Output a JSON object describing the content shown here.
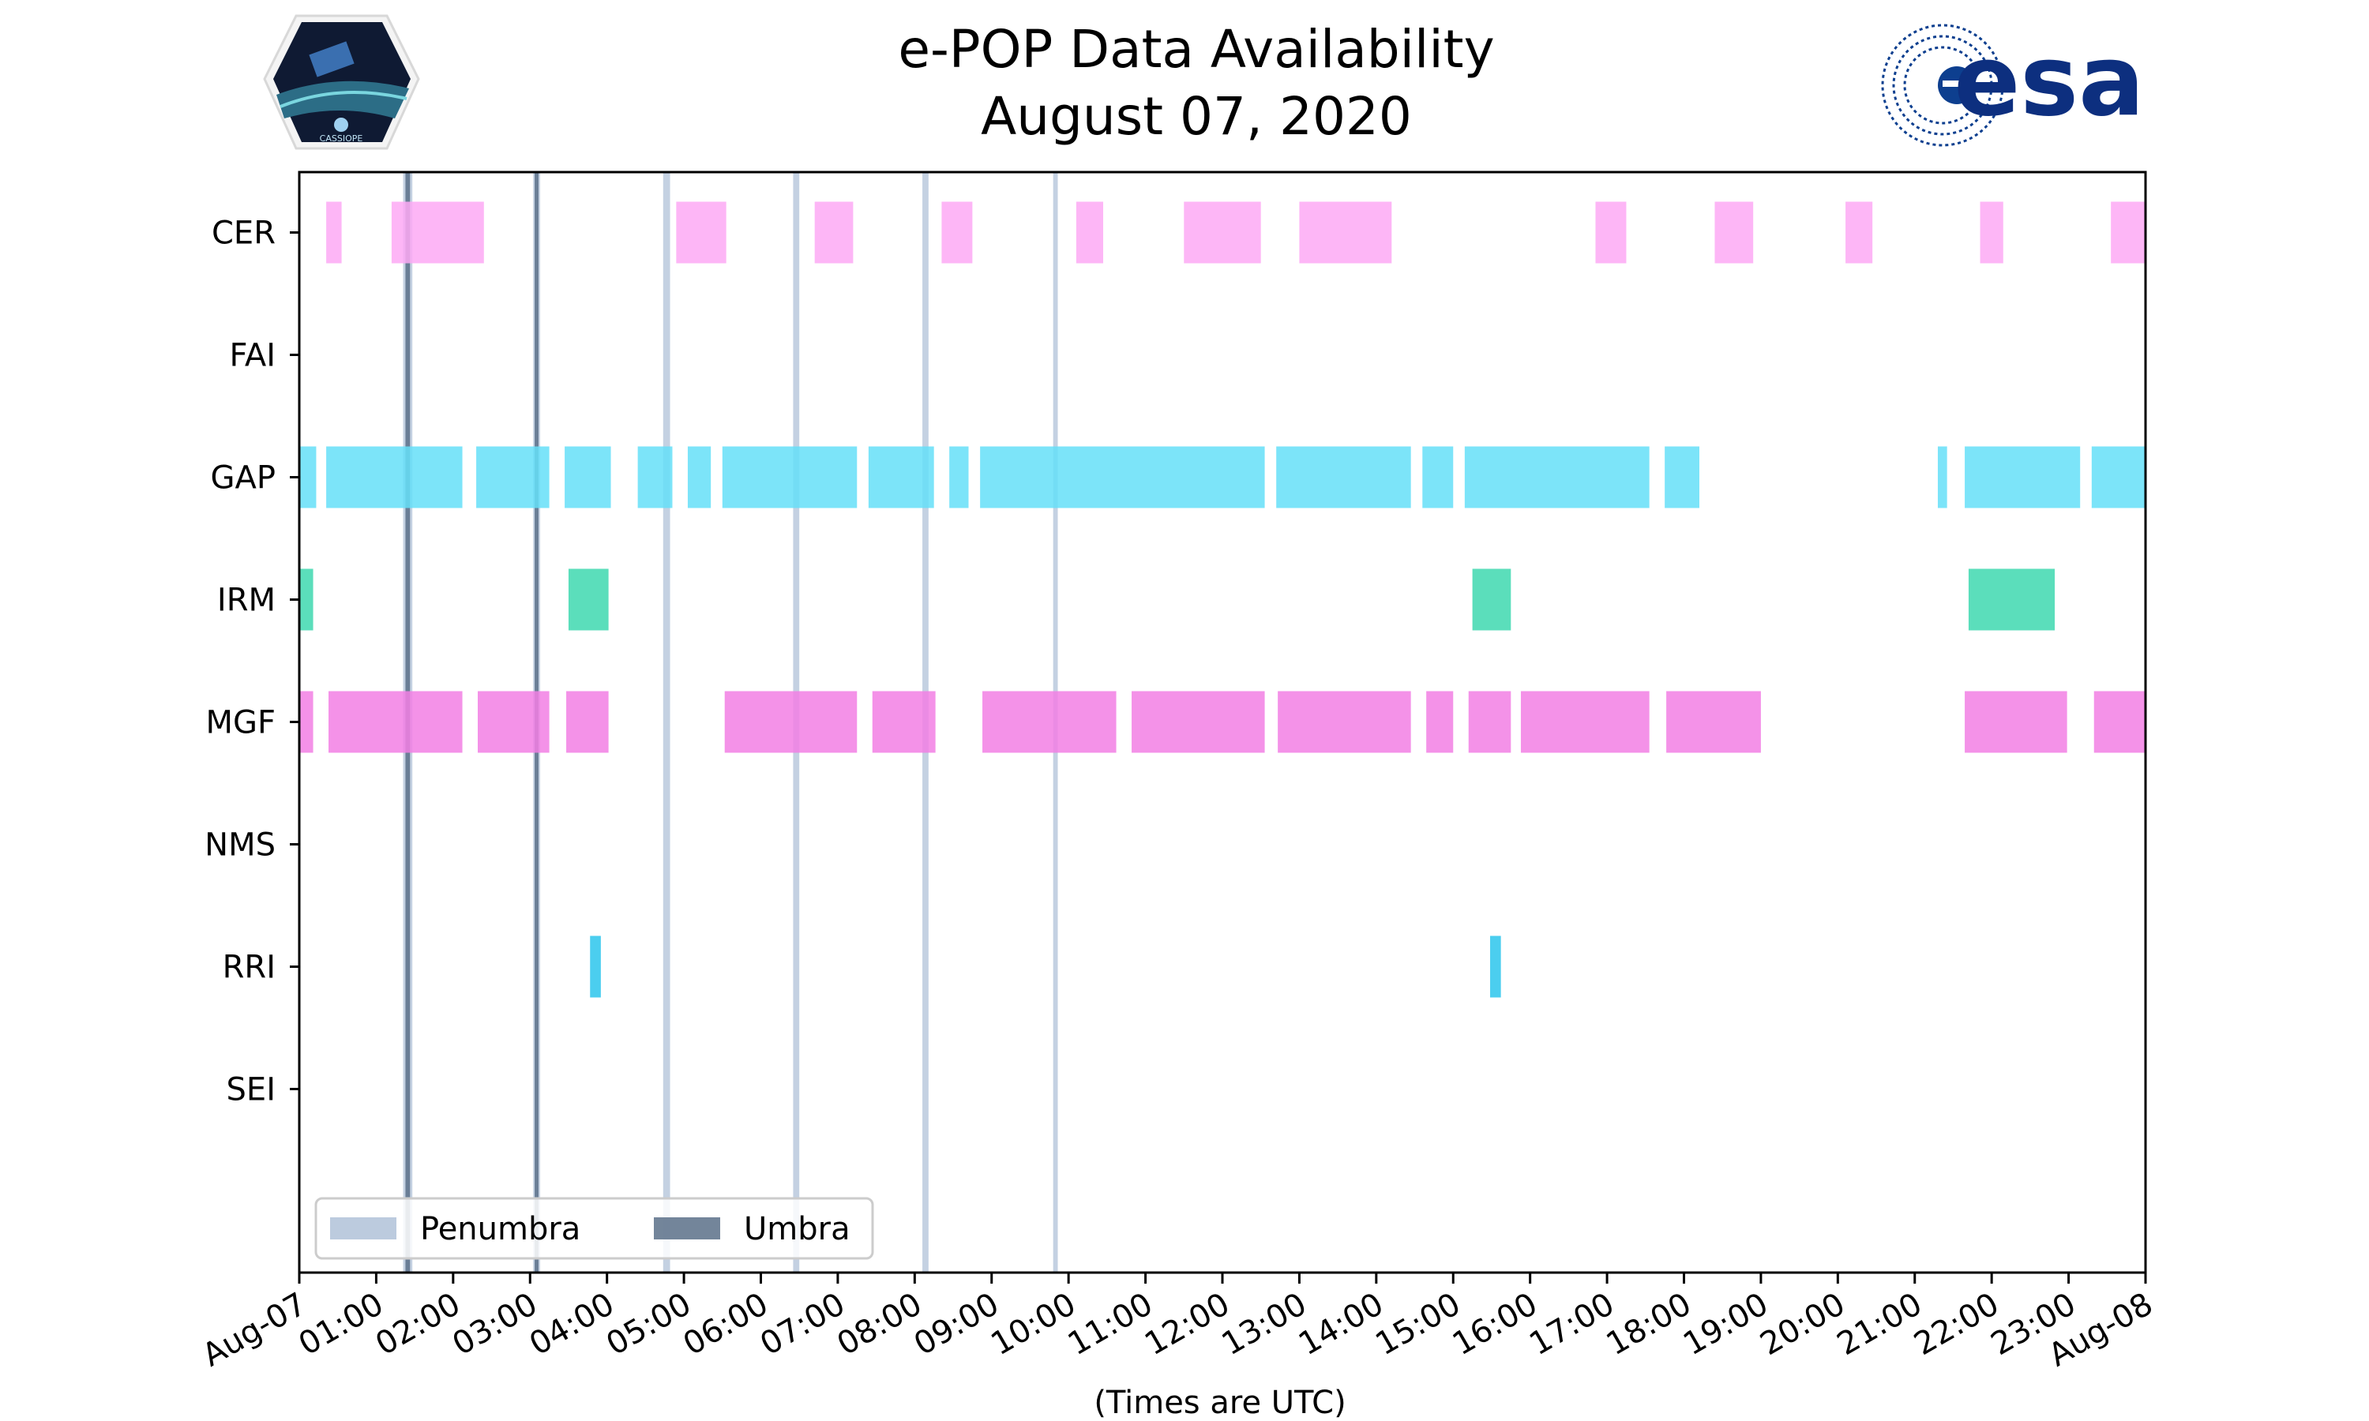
{
  "chart_data": {
    "type": "timeline",
    "title_line1": "e-POP Data Availability",
    "title_line2": "August 07, 2020",
    "xlabel": "(Times are UTC)",
    "x_range_hours": [
      0,
      24
    ],
    "x_tick_labels": [
      "Aug-07",
      "01:00",
      "02:00",
      "03:00",
      "04:00",
      "05:00",
      "06:00",
      "07:00",
      "08:00",
      "09:00",
      "10:00",
      "11:00",
      "12:00",
      "13:00",
      "14:00",
      "15:00",
      "16:00",
      "17:00",
      "18:00",
      "19:00",
      "20:00",
      "21:00",
      "22:00",
      "23:00",
      "Aug-08"
    ],
    "instruments": [
      "CER",
      "FAI",
      "GAP",
      "IRM",
      "MGF",
      "NMS",
      "RRI",
      "SEI"
    ],
    "series": [
      {
        "name": "CER",
        "color": "#fda9f5",
        "intervals": [
          [
            0.35,
            0.55
          ],
          [
            1.2,
            2.4
          ],
          [
            4.9,
            5.55
          ],
          [
            6.7,
            7.2
          ],
          [
            8.35,
            8.75
          ],
          [
            10.1,
            10.45
          ],
          [
            11.5,
            12.5
          ],
          [
            13.0,
            14.2
          ],
          [
            16.85,
            17.25
          ],
          [
            18.4,
            18.9
          ],
          [
            20.1,
            20.45
          ],
          [
            21.85,
            22.15
          ],
          [
            23.55,
            24.0
          ]
        ]
      },
      {
        "name": "FAI",
        "color": "#fda9f5",
        "intervals": []
      },
      {
        "name": "GAP",
        "color": "#65dff8",
        "intervals": [
          [
            0.0,
            0.22
          ],
          [
            0.35,
            2.12
          ],
          [
            2.3,
            3.25
          ],
          [
            3.45,
            4.05
          ],
          [
            4.4,
            4.85
          ],
          [
            5.05,
            5.35
          ],
          [
            5.5,
            7.25
          ],
          [
            7.4,
            8.25
          ],
          [
            8.45,
            8.7
          ],
          [
            8.85,
            12.55
          ],
          [
            12.7,
            14.45
          ],
          [
            14.6,
            15.0
          ],
          [
            15.15,
            17.55
          ],
          [
            17.75,
            18.2
          ],
          [
            21.3,
            21.42
          ],
          [
            21.65,
            23.15
          ],
          [
            23.3,
            24.0
          ]
        ]
      },
      {
        "name": "IRM",
        "color": "#3ed8af",
        "intervals": [
          [
            0.0,
            0.18
          ],
          [
            3.5,
            4.02
          ],
          [
            15.25,
            15.75
          ],
          [
            21.7,
            22.82
          ]
        ]
      },
      {
        "name": "MGF",
        "color": "#f27fe4",
        "intervals": [
          [
            0.0,
            0.18
          ],
          [
            0.38,
            2.12
          ],
          [
            2.32,
            3.25
          ],
          [
            3.47,
            4.02
          ],
          [
            5.53,
            7.25
          ],
          [
            7.45,
            8.27
          ],
          [
            8.88,
            10.62
          ],
          [
            10.82,
            12.55
          ],
          [
            12.72,
            14.45
          ],
          [
            14.65,
            15.0
          ],
          [
            15.2,
            15.75
          ],
          [
            15.88,
            17.55
          ],
          [
            17.77,
            19.0
          ],
          [
            21.65,
            22.98
          ],
          [
            23.33,
            24.0
          ]
        ]
      },
      {
        "name": "NMS",
        "color": "#f27fe4",
        "intervals": []
      },
      {
        "name": "RRI",
        "color": "#2bc6ec",
        "intervals": [
          [
            3.78,
            3.92
          ],
          [
            15.48,
            15.62
          ]
        ]
      },
      {
        "name": "SEI",
        "color": "#2bc6ec",
        "intervals": []
      }
    ],
    "eclipse": {
      "penumbra": [
        [
          1.35,
          1.47
        ],
        [
          3.04,
          3.13
        ],
        [
          4.73,
          4.82
        ],
        [
          6.42,
          6.5
        ],
        [
          8.1,
          8.18
        ],
        [
          9.8,
          9.86
        ]
      ],
      "umbra": [
        [
          1.38,
          1.44
        ],
        [
          3.06,
          3.11
        ]
      ]
    },
    "legend": {
      "placement": "bottom-left",
      "items": [
        {
          "label": "Penumbra",
          "color": "#b0c2d8"
        },
        {
          "label": "Umbra",
          "color": "#5a7088"
        }
      ]
    }
  },
  "logos": {
    "left_logo_text": "CASSIOPE",
    "right_logo_text": "esa"
  }
}
